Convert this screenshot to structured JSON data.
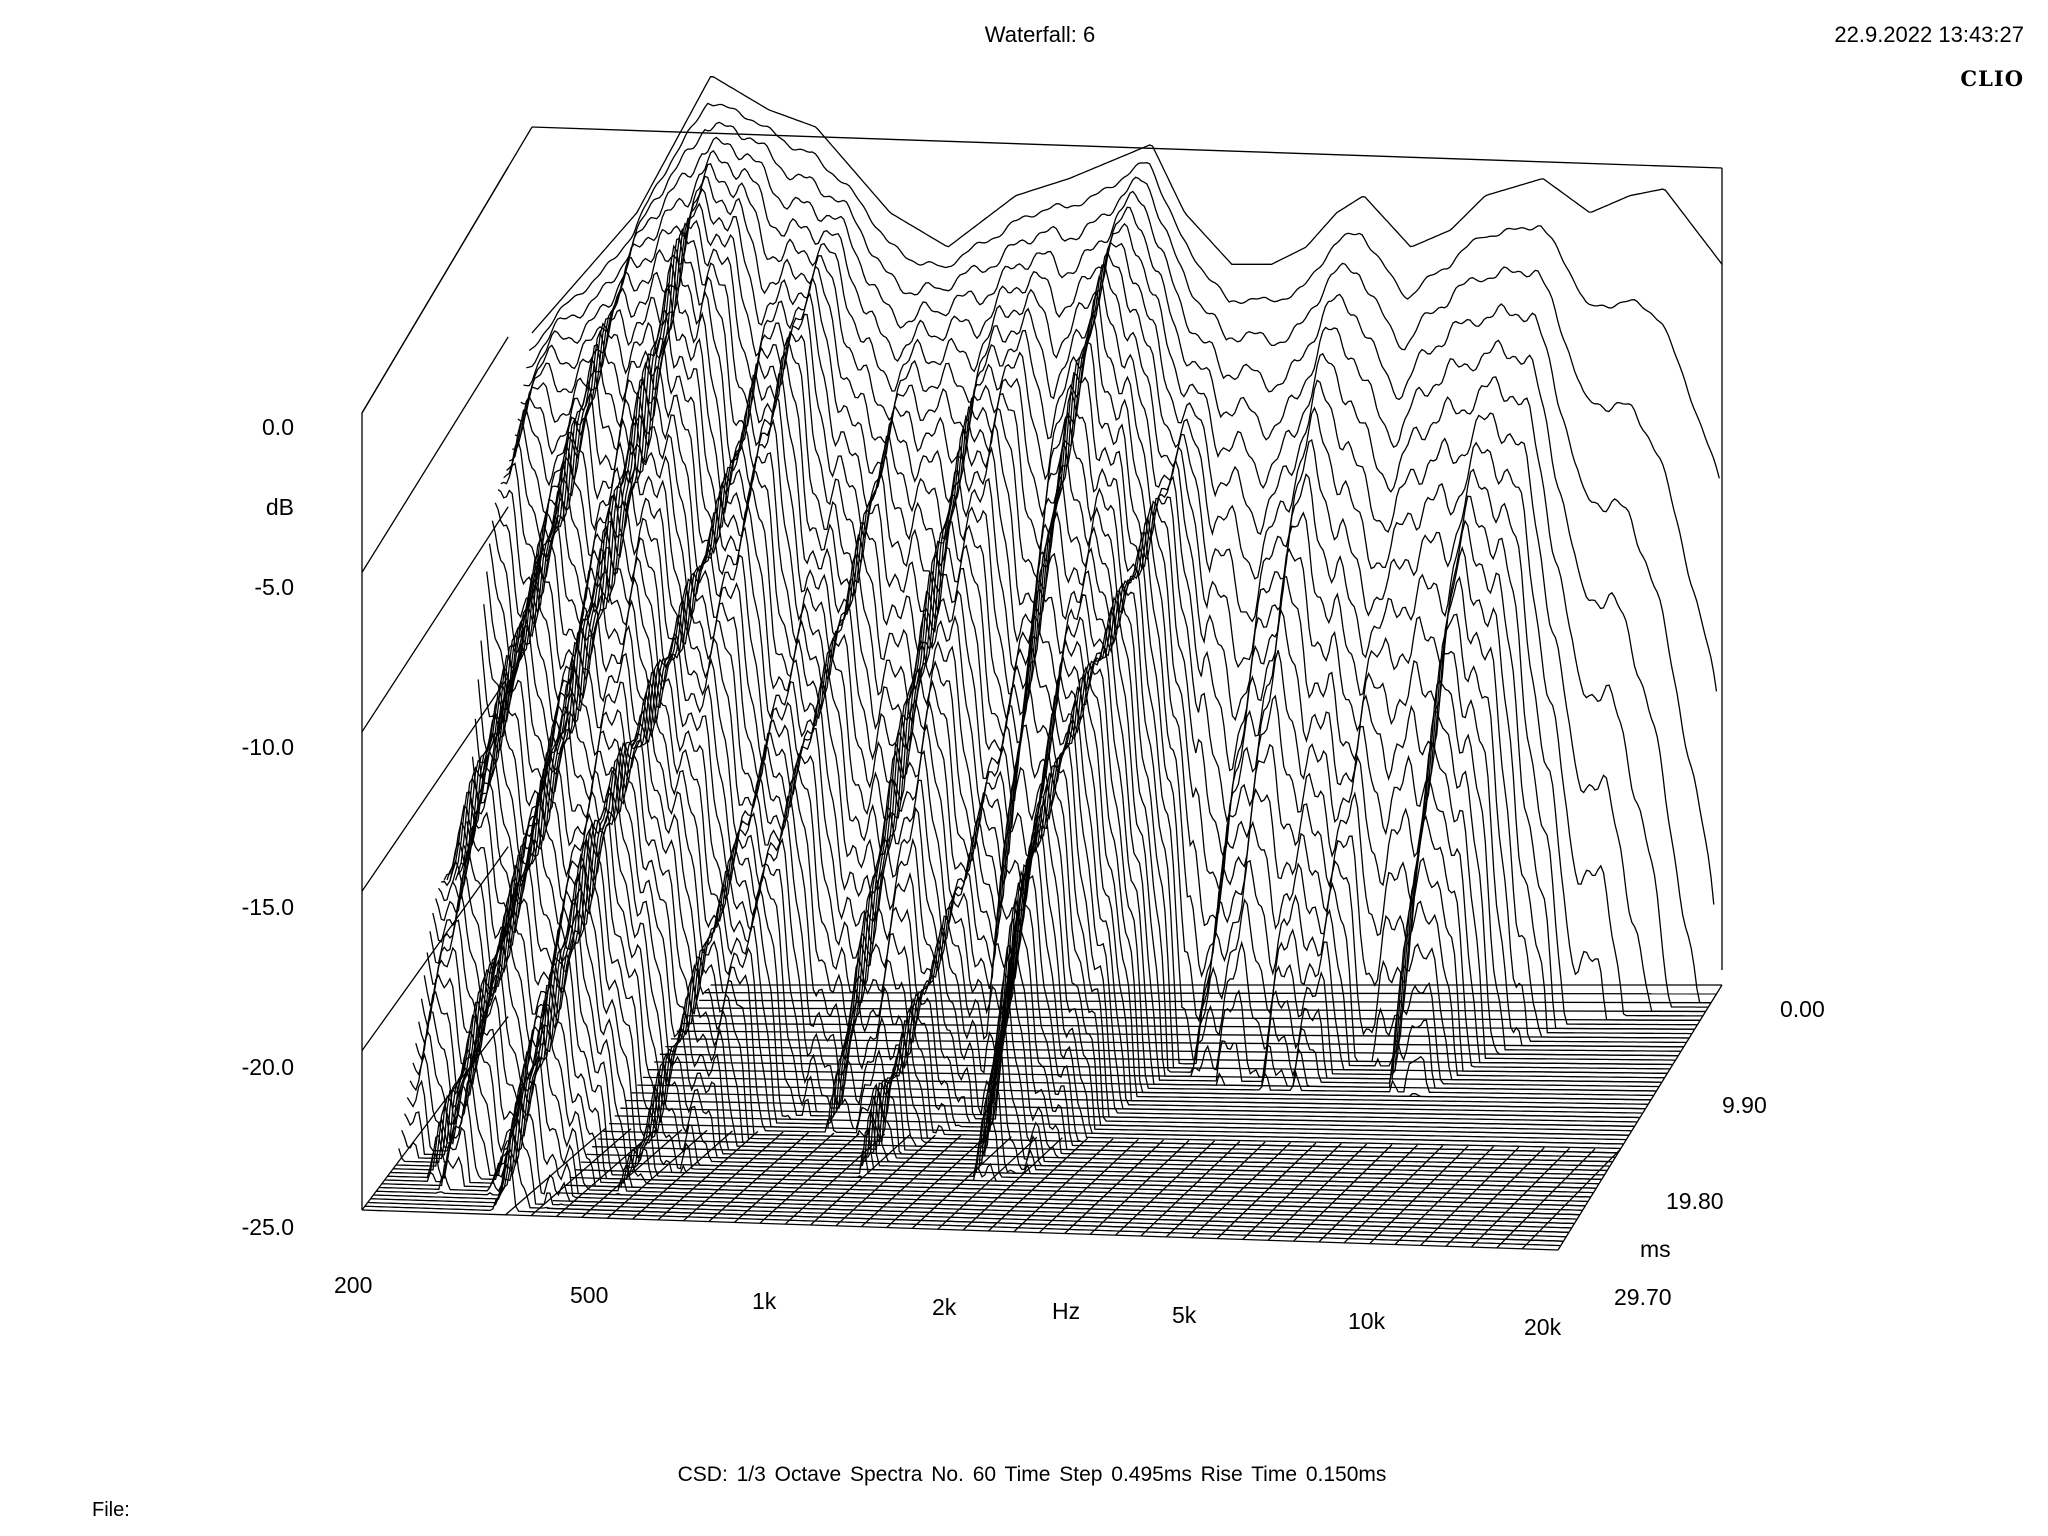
{
  "header": {
    "title": "Waterfall: 6",
    "datetime": "22.9.2022 13:43:27",
    "brand": "CLIO"
  },
  "footer": {
    "info": "CSD:   1/3 Octave   Spectra No. 60   Time Step 0.495ms   Rise Time 0.150ms",
    "file_label": "File:"
  },
  "chart_data": {
    "type": "waterfall",
    "title": "Waterfall: 6",
    "x_axis": {
      "label": "Hz",
      "scale": "log",
      "range": [
        200,
        20000
      ],
      "tick_values": [
        200,
        500,
        1000,
        2000,
        5000,
        10000,
        20000
      ],
      "tick_labels": [
        "200",
        "500",
        "1k",
        "2k",
        "5k",
        "10k",
        "20k"
      ]
    },
    "y_axis": {
      "label": "dB",
      "range": [
        -25,
        0
      ],
      "tick_values": [
        0,
        -5,
        -10,
        -15,
        -20,
        -25
      ],
      "tick_labels": [
        "0.0",
        "-5.0",
        "-10.0",
        "-15.0",
        "-20.0",
        "-25.0"
      ]
    },
    "z_axis": {
      "label": "ms",
      "range": [
        0,
        29.7
      ],
      "tick_values": [
        0,
        9.9,
        19.8,
        29.7
      ],
      "tick_labels": [
        "0.00",
        "9.90",
        "19.80",
        "29.70"
      ]
    },
    "spectra_count": 60,
    "time_step_ms": 0.495,
    "rise_time_ms": 0.15,
    "smoothing": "1/3 Octave",
    "first_spectrum_db": {
      "freq_hz": [
        200,
        300,
        400,
        500,
        600,
        800,
        1000,
        1300,
        1600,
        2000,
        2200,
        2500,
        3000,
        3500,
        4000,
        4500,
        5000,
        6000,
        7000,
        8000,
        10000,
        12000,
        14000,
        16000,
        20000
      ],
      "db": [
        -6,
        -2.5,
        1.5,
        0.5,
        0,
        -2.5,
        -3.5,
        -2,
        -1.5,
        -0.8,
        -0.5,
        -2.5,
        -4,
        -4,
        -3.5,
        -2.5,
        -2,
        -3.5,
        -3,
        -2,
        -1.5,
        -2.5,
        -2,
        -1.8,
        -4
      ]
    },
    "peak_decay_ms": [
      {
        "freq_hz": 300,
        "ms": 29.7
      },
      {
        "freq_hz": 400,
        "ms": 28
      },
      {
        "freq_hz": 500,
        "ms": 24
      },
      {
        "freq_hz": 650,
        "ms": 22
      },
      {
        "freq_hz": 900,
        "ms": 18
      },
      {
        "freq_hz": 1200,
        "ms": 24
      },
      {
        "freq_hz": 1600,
        "ms": 16
      },
      {
        "freq_hz": 2000,
        "ms": 26
      },
      {
        "freq_hz": 2500,
        "ms": 22
      },
      {
        "freq_hz": 3000,
        "ms": 12
      },
      {
        "freq_hz": 4500,
        "ms": 14
      },
      {
        "freq_hz": 6000,
        "ms": 10
      },
      {
        "freq_hz": 8000,
        "ms": 14
      },
      {
        "freq_hz": 12000,
        "ms": 5
      },
      {
        "freq_hz": 20000,
        "ms": 2
      }
    ],
    "grid": false,
    "legend": "none"
  }
}
